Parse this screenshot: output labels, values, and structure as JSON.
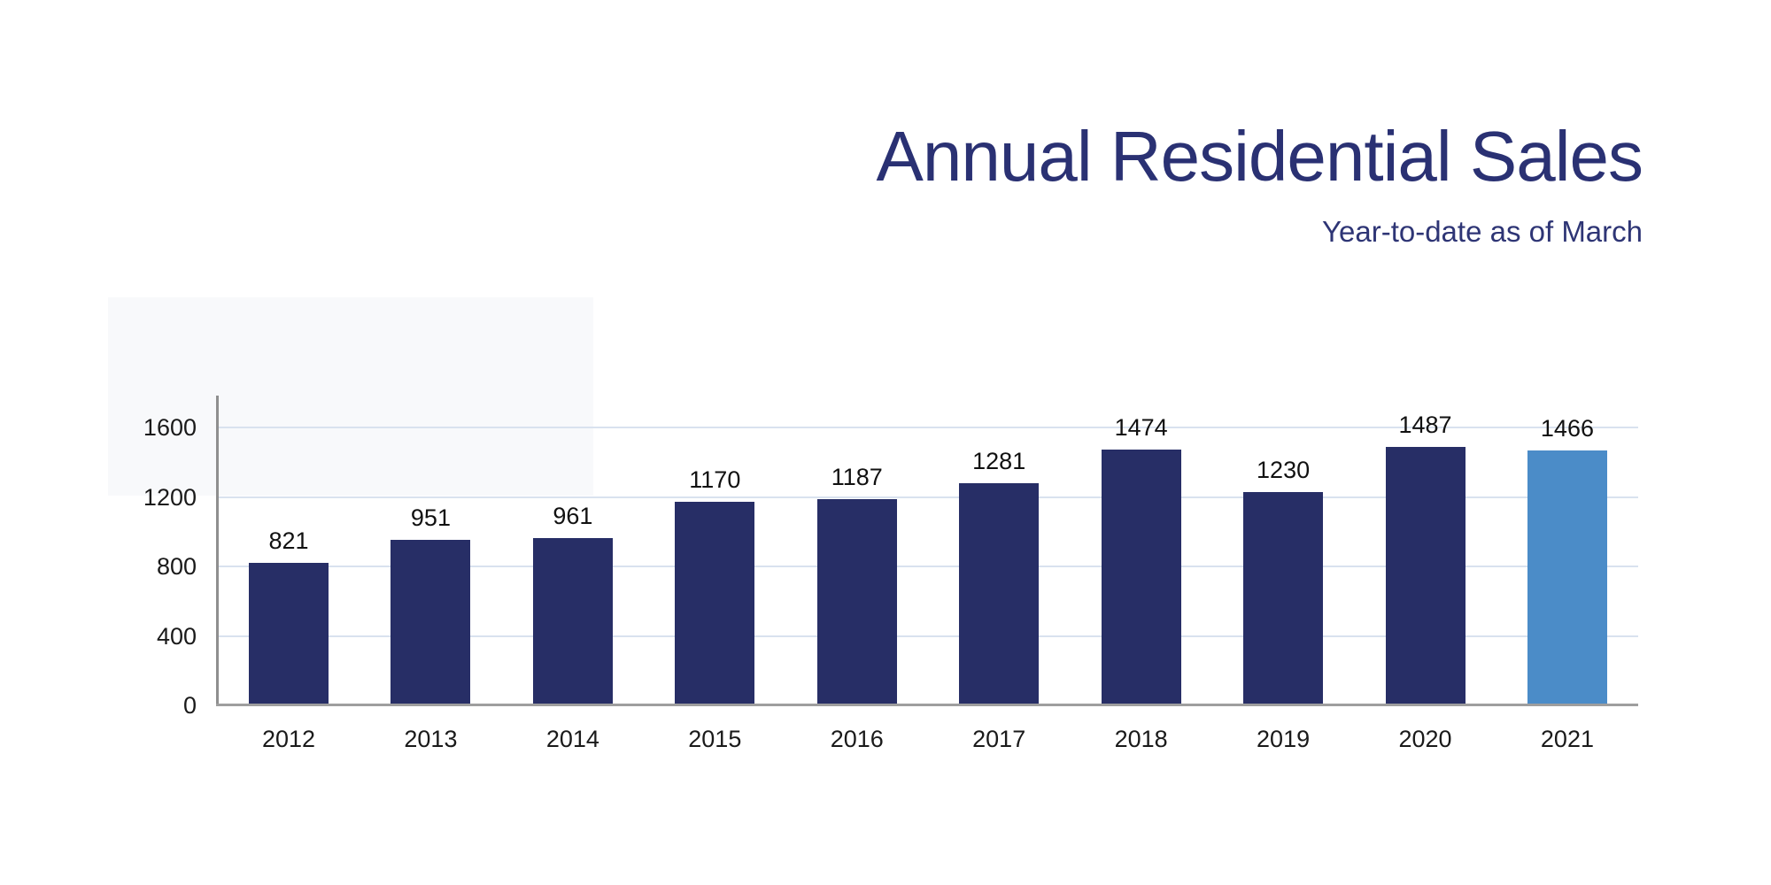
{
  "header": {
    "title_color": "#2a3173",
    "subtitle_color": "#2e3575"
  },
  "chart_data": {
    "type": "bar",
    "title": "Annual Residential Sales",
    "subtitle": "Year-to-date as of March",
    "categories": [
      "2012",
      "2013",
      "2014",
      "2015",
      "2016",
      "2017",
      "2018",
      "2019",
      "2020",
      "2021"
    ],
    "values": [
      821,
      951,
      961,
      1170,
      1187,
      1281,
      1474,
      1230,
      1487,
      1466
    ],
    "data_labels": [
      "821",
      "951",
      "961",
      "1170",
      "1187",
      "1281",
      "1474",
      "1230",
      "1487",
      "1466"
    ],
    "xlabel": "",
    "ylabel": "",
    "yticks": [
      0,
      400,
      800,
      1200,
      1600
    ],
    "ytick_labels": [
      "0",
      "400",
      "800",
      "1200",
      "1600"
    ],
    "ylim": [
      0,
      1600
    ],
    "grid": true,
    "legend_position": "none",
    "bar_color": "#272e66",
    "highlight_color": "#4b8cc8",
    "highlight_index": 9,
    "gridline_color": "#d9e2ef",
    "x_axis_color": "#9e9e9e",
    "y_axis_color": "#8f8f8f",
    "tick_label_color": "#1a1a1a",
    "data_label_color": "#111111"
  }
}
